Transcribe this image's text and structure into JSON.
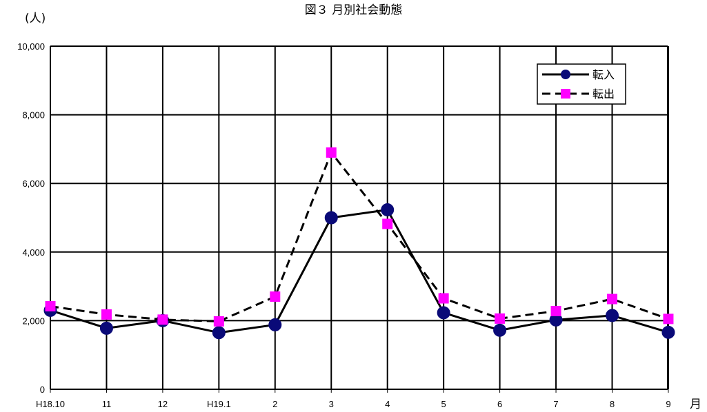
{
  "chart_data": {
    "type": "line",
    "title": "図３ 月別社会動態",
    "ylabel": "(人)",
    "xlabel": "月",
    "categories": [
      "H18.10",
      "11",
      "12",
      "H19.1",
      "2",
      "3",
      "4",
      "5",
      "6",
      "7",
      "8",
      "9"
    ],
    "ylim": [
      0,
      10000
    ],
    "yticks": [
      "0",
      "2,000",
      "4,000",
      "6,000",
      "8,000",
      "10,000"
    ],
    "grid": true,
    "legend_position": "top-right",
    "series": [
      {
        "name": "転入",
        "color": "#0a0a78",
        "line": "solid",
        "marker": "circle",
        "values": [
          2300,
          1780,
          2000,
          1650,
          1880,
          5000,
          5230,
          2230,
          1720,
          2020,
          2150,
          1660
        ]
      },
      {
        "name": "転出",
        "color": "#ff00ff",
        "line": "dashed",
        "marker": "square",
        "values": [
          2420,
          2180,
          2030,
          1980,
          2700,
          6900,
          4820,
          2650,
          2060,
          2280,
          2630,
          2050
        ]
      }
    ]
  }
}
